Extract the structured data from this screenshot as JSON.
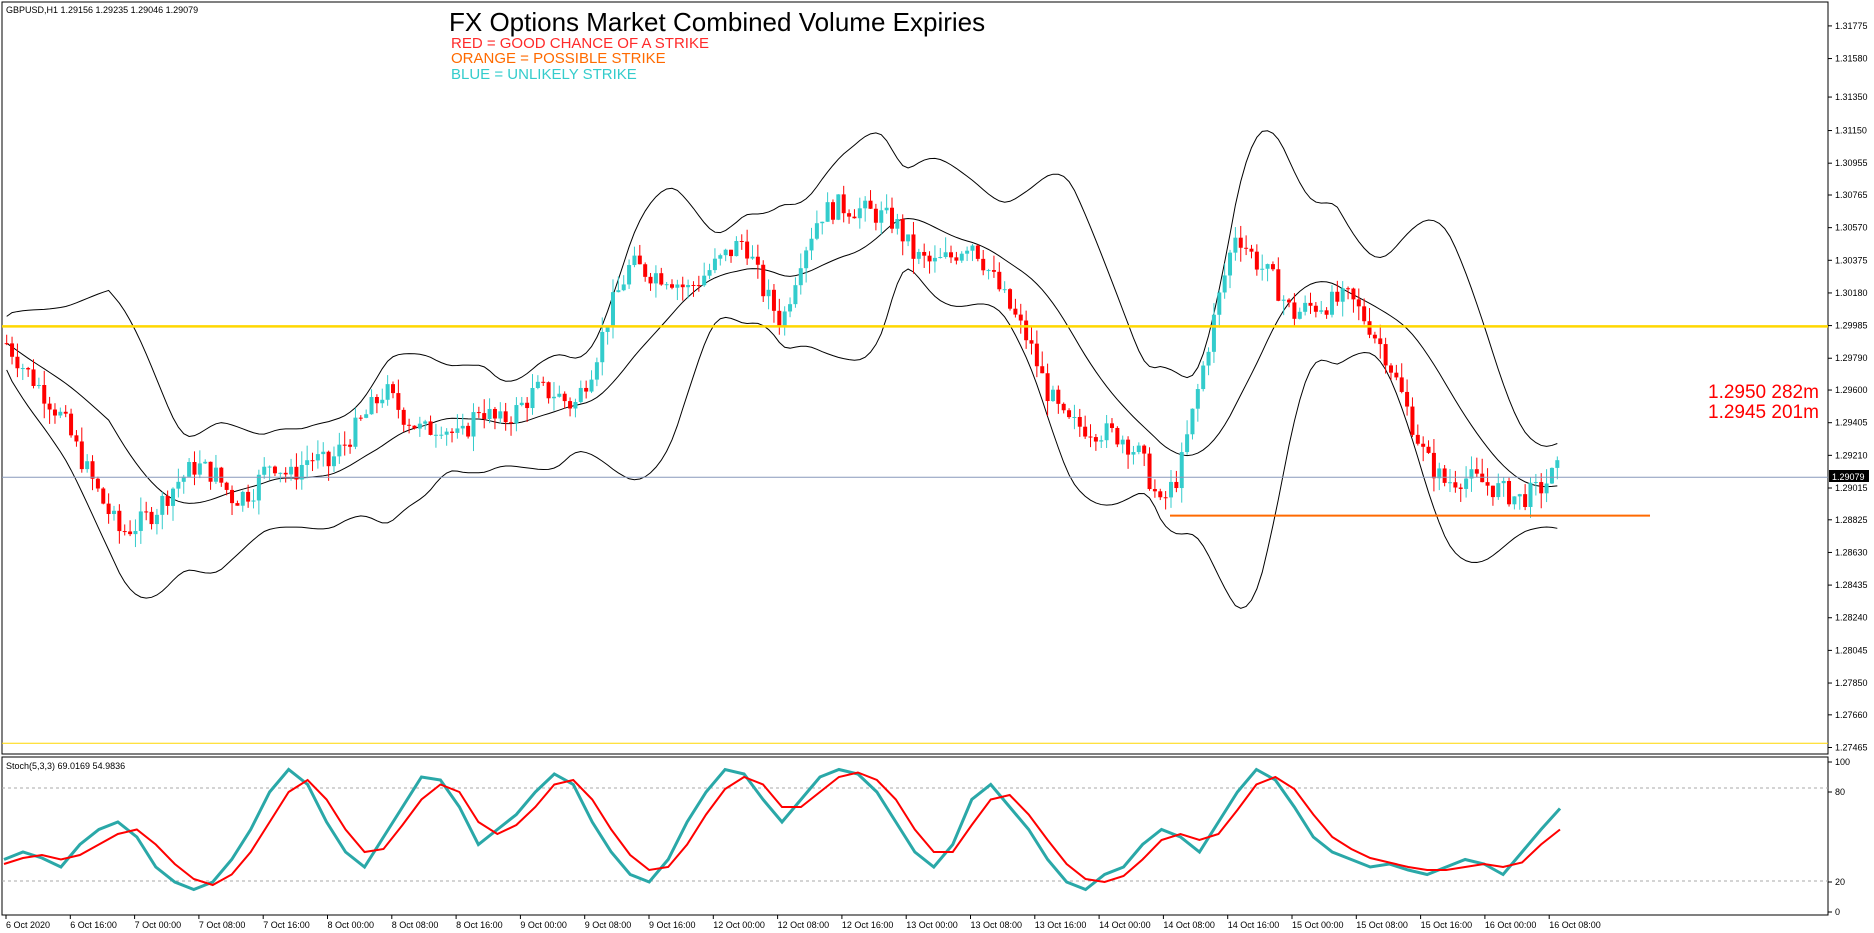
{
  "symbol_info": "GBPUSD,H1  1.29156 1.29235 1.29046 1.29079",
  "title": "FX Options Market Combined Volume Expiries",
  "legend": [
    {
      "text": "RED = GOOD CHANCE OF A STRIKE",
      "color": "#ff2a2a"
    },
    {
      "text": "ORANGE = POSSIBLE STRIKE",
      "color": "#ff6a00"
    },
    {
      "text": "BLUE = UNLIKELY STRIKE",
      "color": "#33cccc"
    }
  ],
  "expiries": [
    {
      "text": "1.2950 282m",
      "color": "#ff0000"
    },
    {
      "text": "1.2945 201m",
      "color": "#ff0000"
    }
  ],
  "current_price_label": "1.29079",
  "stoch_label": "Stoch(5,3,3) 69.0169 54.9836",
  "colors": {
    "bull": "#33cccc",
    "bear": "#ff0000",
    "band": "#000000",
    "level": "#ffd700",
    "strike": "#ff6a00",
    "price_line": "#8899bb",
    "stoch_main": "#2aa8a8",
    "stoch_signal": "#ff0000"
  },
  "chart_data": [
    {
      "type": "candlestick",
      "title": "FX Options Market Combined Volume Expiries",
      "symbol": "GBPUSD",
      "timeframe": "H1",
      "y_ticks": [
        "1.31775",
        "1.31580",
        "1.31350",
        "1.31150",
        "1.30955",
        "1.30765",
        "1.30570",
        "1.30375",
        "1.30180",
        "1.29985",
        "1.29790",
        "1.29600",
        "1.29405",
        "1.29210",
        "1.29015",
        "1.28825",
        "1.28630",
        "1.28435",
        "1.28240",
        "1.28045",
        "1.27850",
        "1.27660",
        "1.27465"
      ],
      "ylim": [
        1.2745,
        1.3187
      ],
      "x_ticks": [
        "6 Oct 2020",
        "6 Oct 16:00",
        "7 Oct 00:00",
        "7 Oct 08:00",
        "7 Oct 16:00",
        "8 Oct 00:00",
        "8 Oct 08:00",
        "8 Oct 16:00",
        "9 Oct 00:00",
        "9 Oct 08:00",
        "9 Oct 16:00",
        "12 Oct 00:00",
        "12 Oct 08:00",
        "12 Oct 16:00",
        "13 Oct 00:00",
        "13 Oct 08:00",
        "13 Oct 16:00",
        "14 Oct 00:00",
        "14 Oct 08:00",
        "14 Oct 16:00",
        "15 Oct 00:00",
        "15 Oct 08:00",
        "15 Oct 16:00",
        "16 Oct 00:00",
        "16 Oct 08:00"
      ],
      "close_path": [
        1.2988,
        1.2972,
        1.2958,
        1.2942,
        1.2918,
        1.2895,
        1.2875,
        1.288,
        1.289,
        1.2905,
        1.2915,
        1.291,
        1.2895,
        1.29,
        1.2918,
        1.2908,
        1.292,
        1.2915,
        1.293,
        1.2945,
        1.296,
        1.2945,
        1.2935,
        1.294,
        1.293,
        1.295,
        1.294,
        1.2948,
        1.296,
        1.2958,
        1.295,
        1.2975,
        1.301,
        1.3035,
        1.303,
        1.3028,
        1.302,
        1.303,
        1.304,
        1.305,
        1.302,
        1.3,
        1.304,
        1.3065,
        1.307,
        1.3068,
        1.3065,
        1.306,
        1.304,
        1.3035,
        1.304,
        1.305,
        1.303,
        1.301,
        1.299,
        1.296,
        1.294,
        1.2938,
        1.2935,
        1.2932,
        1.292,
        1.289,
        1.291,
        1.296,
        1.301,
        1.3055,
        1.3038,
        1.3025,
        1.3005,
        1.301,
        1.3012,
        1.3015,
        1.3,
        1.298,
        1.295,
        1.292,
        1.2905,
        1.2908,
        1.2905,
        1.29,
        1.2895,
        1.29,
        1.2912
      ],
      "levels": {
        "yellow_line": 1.2998,
        "yellow_bottom_line": 1.2749,
        "strike_line": 1.2885,
        "current_price": 1.29079
      },
      "expiries": [
        {
          "strike": 1.295,
          "size": "282m"
        },
        {
          "strike": 1.2945,
          "size": "201m"
        }
      ]
    },
    {
      "type": "line",
      "title": "Stoch(5,3,3)",
      "series": [
        {
          "name": "Stoch main",
          "values": [
            35,
            40,
            36,
            30,
            45,
            55,
            60,
            50,
            30,
            20,
            15,
            20,
            35,
            55,
            80,
            95,
            85,
            60,
            40,
            30,
            50,
            70,
            90,
            88,
            70,
            45,
            55,
            65,
            80,
            92,
            85,
            60,
            40,
            25,
            20,
            35,
            60,
            80,
            95,
            92,
            75,
            60,
            75,
            90,
            95,
            92,
            80,
            60,
            40,
            30,
            45,
            75,
            85,
            70,
            55,
            35,
            20,
            15,
            25,
            30,
            45,
            55,
            50,
            40,
            60,
            80,
            95,
            88,
            70,
            50,
            40,
            35,
            30,
            32,
            28,
            25,
            30,
            35,
            32,
            25,
            40,
            55,
            69
          ]
        },
        {
          "name": "Stoch signal",
          "values": [
            32,
            36,
            38,
            35,
            38,
            45,
            52,
            55,
            45,
            32,
            22,
            18,
            25,
            40,
            60,
            80,
            88,
            75,
            55,
            40,
            42,
            58,
            75,
            85,
            80,
            60,
            52,
            58,
            70,
            85,
            88,
            75,
            55,
            38,
            28,
            30,
            45,
            65,
            82,
            90,
            85,
            70,
            70,
            80,
            90,
            93,
            88,
            75,
            55,
            40,
            40,
            58,
            75,
            78,
            65,
            48,
            32,
            22,
            20,
            24,
            35,
            48,
            52,
            48,
            52,
            68,
            85,
            90,
            82,
            65,
            50,
            42,
            36,
            33,
            30,
            28,
            28,
            30,
            32,
            30,
            33,
            45,
            55
          ]
        }
      ],
      "y_ticks": [
        "100",
        "80",
        "20",
        "0"
      ],
      "ylim": [
        0,
        100
      ]
    }
  ]
}
